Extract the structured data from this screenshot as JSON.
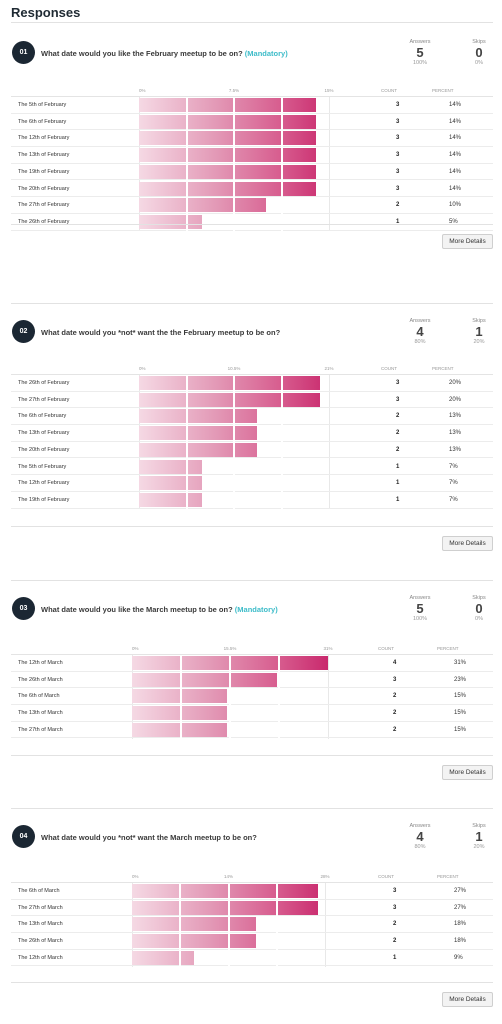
{
  "page": {
    "title": "Responses"
  },
  "labels": {
    "answers": "Answers",
    "skips": "Skips",
    "count": "COUNT",
    "percent": "PERCENT",
    "more_details": "More Details",
    "mandatory": "(Mandatory)"
  },
  "colors": {
    "bar_start": "#f5d9e4",
    "bar_end": "#c9296d",
    "badge": "#1b2733",
    "mandatory": "#3dbcc9"
  },
  "questions": [
    {
      "number": "01",
      "text": "What date would you like the February meetup to be on?",
      "mandatory": true,
      "answers": "5",
      "answers_pct": "100%",
      "skips": "0",
      "skips_pct": "0%",
      "axis_ticks": [
        "0%",
        "7.5%",
        "15%"
      ],
      "axis_max": 15,
      "rows": [
        {
          "label": "The 5th of February",
          "count": "3",
          "percent": "14%",
          "value": 14
        },
        {
          "label": "The 6th of February",
          "count": "3",
          "percent": "14%",
          "value": 14
        },
        {
          "label": "The 12th of February",
          "count": "3",
          "percent": "14%",
          "value": 14
        },
        {
          "label": "The 13th of February",
          "count": "3",
          "percent": "14%",
          "value": 14
        },
        {
          "label": "The 19th of February",
          "count": "3",
          "percent": "14%",
          "value": 14
        },
        {
          "label": "The 20th of February",
          "count": "3",
          "percent": "14%",
          "value": 14
        },
        {
          "label": "The 27th of February",
          "count": "2",
          "percent": "10%",
          "value": 10
        },
        {
          "label": "The 26th of February",
          "count": "1",
          "percent": "5%",
          "value": 5
        }
      ]
    },
    {
      "number": "02",
      "text": "What date would you *not* want the the February meetup to be on?",
      "mandatory": false,
      "answers": "4",
      "answers_pct": "80%",
      "skips": "1",
      "skips_pct": "20%",
      "axis_ticks": [
        "0%",
        "10.5%",
        "21%"
      ],
      "axis_max": 21,
      "rows": [
        {
          "label": "The 26th of February",
          "count": "3",
          "percent": "20%",
          "value": 20
        },
        {
          "label": "The 27th of February",
          "count": "3",
          "percent": "20%",
          "value": 20
        },
        {
          "label": "The 6th of February",
          "count": "2",
          "percent": "13%",
          "value": 13
        },
        {
          "label": "The 13th of February",
          "count": "2",
          "percent": "13%",
          "value": 13
        },
        {
          "label": "The 20th of February",
          "count": "2",
          "percent": "13%",
          "value": 13
        },
        {
          "label": "The 5th of February",
          "count": "1",
          "percent": "7%",
          "value": 7
        },
        {
          "label": "The 12th of February",
          "count": "1",
          "percent": "7%",
          "value": 7
        },
        {
          "label": "The 19th of February",
          "count": "1",
          "percent": "7%",
          "value": 7
        }
      ]
    },
    {
      "number": "03",
      "text": "What date would you like the March meetup to be on?",
      "mandatory": true,
      "answers": "5",
      "answers_pct": "100%",
      "skips": "0",
      "skips_pct": "0%",
      "axis_ticks": [
        "0%",
        "15.5%",
        "31%"
      ],
      "axis_max": 31,
      "rows": [
        {
          "label": "The 12th of March",
          "count": "4",
          "percent": "31%",
          "value": 31
        },
        {
          "label": "The 26th of March",
          "count": "3",
          "percent": "23%",
          "value": 23
        },
        {
          "label": "The 6th of March",
          "count": "2",
          "percent": "15%",
          "value": 15
        },
        {
          "label": "The 13th of March",
          "count": "2",
          "percent": "15%",
          "value": 15
        },
        {
          "label": "The 27th of March",
          "count": "2",
          "percent": "15%",
          "value": 15
        }
      ]
    },
    {
      "number": "04",
      "text": "What date would you *not* want the March meetup to be on?",
      "mandatory": false,
      "answers": "4",
      "answers_pct": "80%",
      "skips": "1",
      "skips_pct": "20%",
      "axis_ticks": [
        "0%",
        "14%",
        "28%"
      ],
      "axis_max": 28,
      "rows": [
        {
          "label": "The 6th of March",
          "count": "3",
          "percent": "27%",
          "value": 27
        },
        {
          "label": "The 27th of March",
          "count": "3",
          "percent": "27%",
          "value": 27
        },
        {
          "label": "The 13th of March",
          "count": "2",
          "percent": "18%",
          "value": 18
        },
        {
          "label": "The 26th of March",
          "count": "2",
          "percent": "18%",
          "value": 18
        },
        {
          "label": "The 12th of March",
          "count": "1",
          "percent": "9%",
          "value": 9
        }
      ]
    }
  ]
}
